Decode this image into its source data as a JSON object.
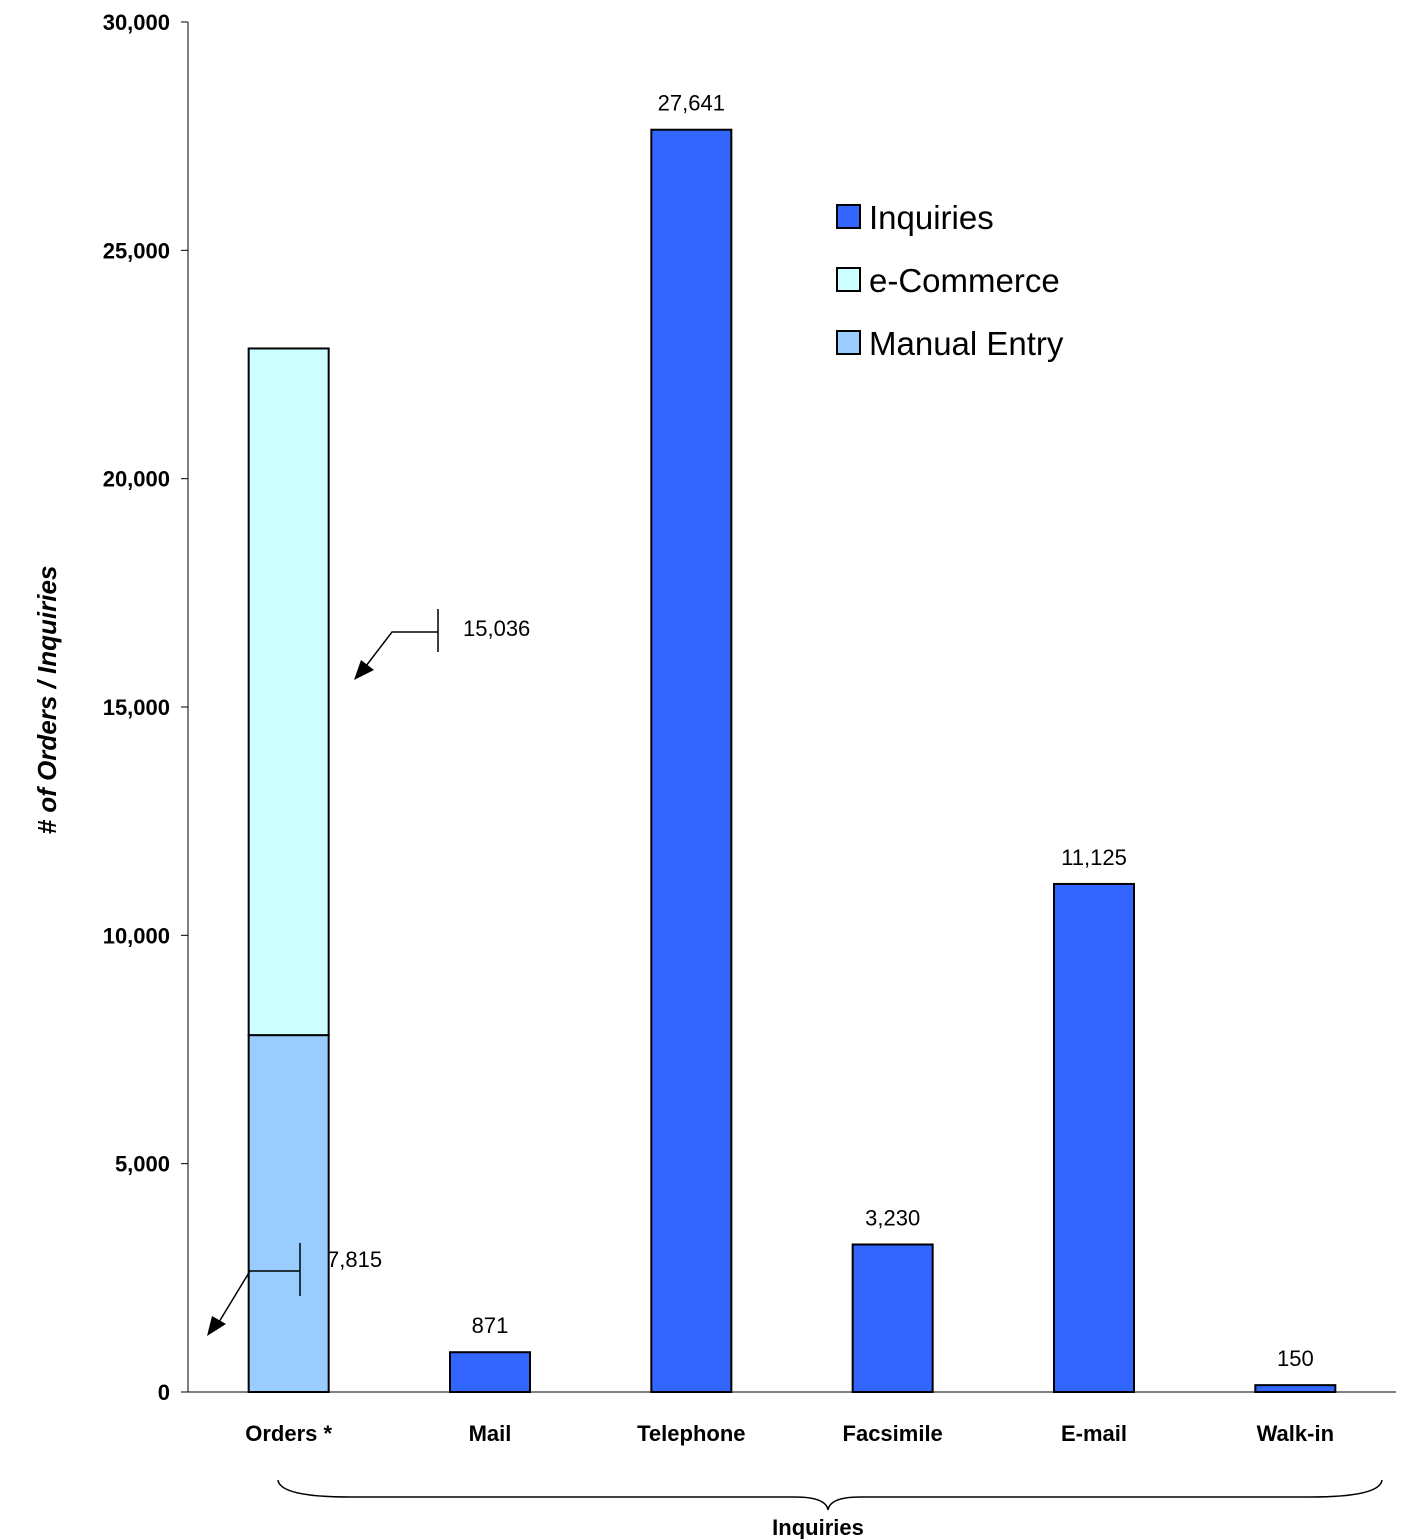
{
  "chart_data": {
    "type": "bar",
    "stacked": true,
    "categories": [
      "Orders *",
      "Mail",
      "Telephone",
      "Facsimile",
      "E-mail",
      "Walk-in"
    ],
    "series": [
      {
        "name": "Manual Entry",
        "color": "#99ccff",
        "values": [
          7815,
          null,
          null,
          null,
          null,
          null
        ]
      },
      {
        "name": "e-Commerce",
        "color": "#ccffff",
        "values": [
          15036,
          null,
          null,
          null,
          null,
          null
        ]
      },
      {
        "name": "Inquiries",
        "color": "#3366ff",
        "values": [
          null,
          871,
          27641,
          3230,
          11125,
          150
        ]
      }
    ],
    "data_labels": {
      "manual_entry": "7,815",
      "e_commerce": "15,036",
      "inquiries": [
        "871",
        "27,641",
        "3,230",
        "11,125",
        "150"
      ]
    },
    "ylabel": "# of Orders / Inquiries",
    "group_label": "Inquiries",
    "ylim": [
      0,
      30000
    ],
    "yticks": [
      0,
      5000,
      10000,
      15000,
      20000,
      25000,
      30000
    ],
    "ytick_labels": [
      "0",
      "5,000",
      "10,000",
      "15,000",
      "20,000",
      "25,000",
      "30,000"
    ],
    "legend_order": [
      "Inquiries",
      "e-Commerce",
      "Manual Entry"
    ],
    "legend_position": "top-right",
    "grid": false
  }
}
